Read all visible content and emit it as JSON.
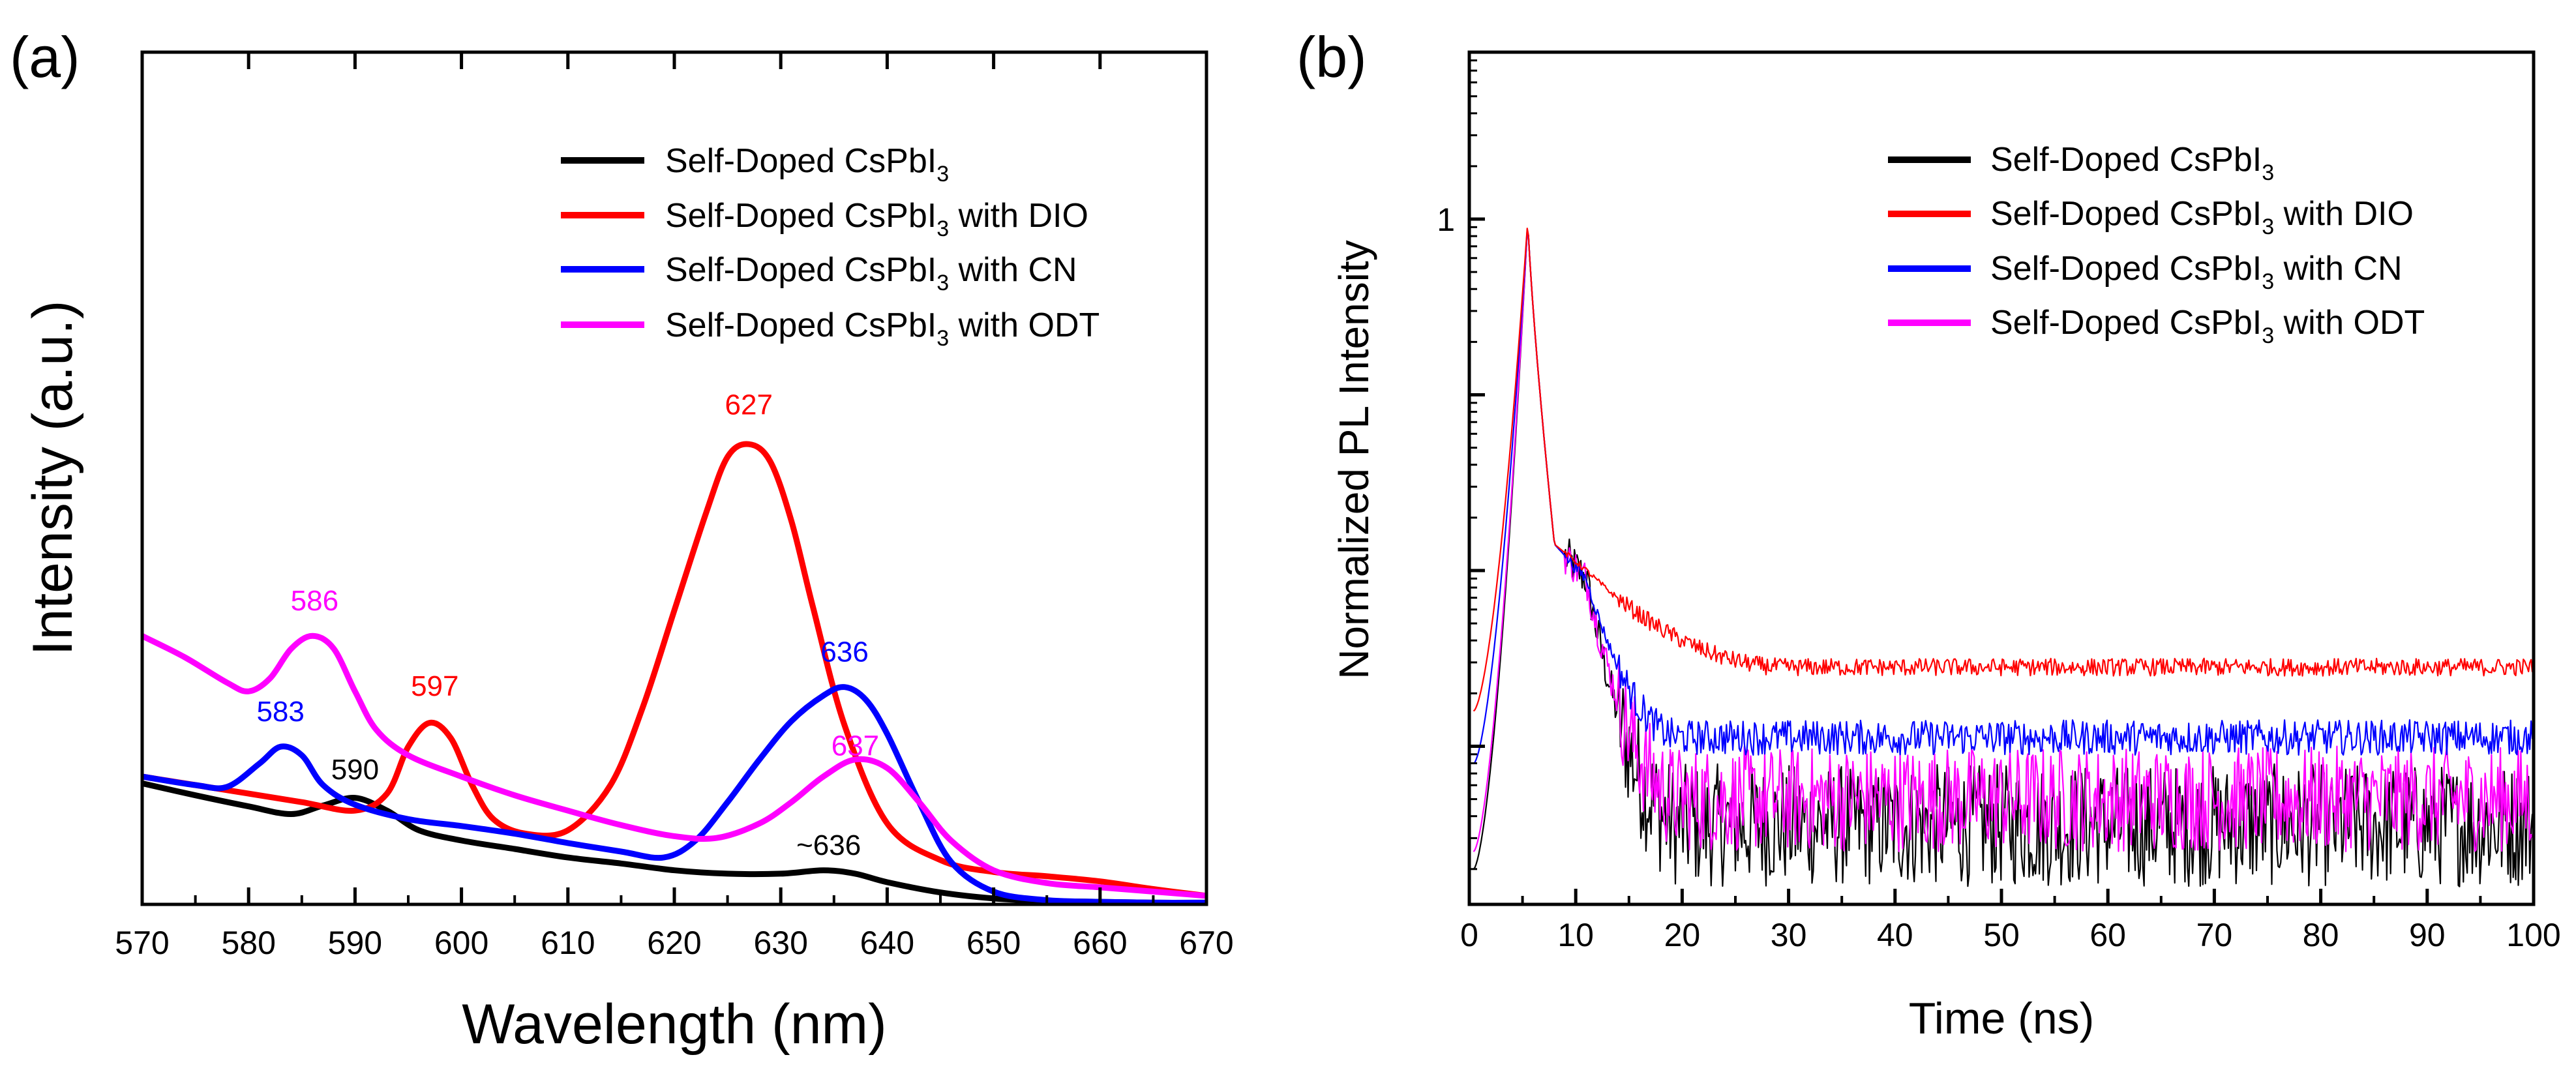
{
  "chart_data": [
    {
      "panel_label": "(a)",
      "type": "line",
      "title": "",
      "xlabel": "Wavelength (nm)",
      "ylabel": "Intensity (a.u.)",
      "xlim": [
        570,
        670
      ],
      "ylim": [
        0,
        1
      ],
      "x_ticks": [
        570,
        580,
        590,
        600,
        610,
        620,
        630,
        640,
        650,
        660,
        670
      ],
      "x_tick_labels": [
        "570",
        "580",
        "590",
        "600",
        "610",
        "620",
        "630",
        "640",
        "650",
        "660",
        "670"
      ],
      "legend": {
        "placement": "top-right"
      },
      "series": [
        {
          "name": "Self-Doped CsPbI3",
          "legend_main": "Self-Doped CsPbI",
          "legend_sub": "3",
          "legend_suffix": "",
          "color": "#000000",
          "x": [
            570,
            575,
            580,
            584,
            587,
            590,
            593,
            596,
            600,
            605,
            610,
            615,
            620,
            625,
            630,
            634,
            637,
            640,
            645,
            650,
            655,
            660,
            665,
            670
          ],
          "y": [
            0.142,
            0.128,
            0.115,
            0.106,
            0.116,
            0.125,
            0.11,
            0.087,
            0.075,
            0.065,
            0.055,
            0.048,
            0.04,
            0.036,
            0.036,
            0.04,
            0.036,
            0.026,
            0.014,
            0.007,
            0.004,
            0.003,
            0.002,
            0.002
          ]
        },
        {
          "name": "Self-Doped CsPbI3 with DIO",
          "legend_main": "Self-Doped CsPbI",
          "legend_sub": "3",
          "legend_suffix": " with DIO",
          "color": "#ff0000",
          "x": [
            570,
            575,
            580,
            585,
            590,
            593,
            595,
            597,
            599,
            601,
            603,
            606,
            610,
            614,
            617,
            620,
            623,
            625,
            627,
            629,
            631,
            633,
            636,
            640,
            645,
            650,
            655,
            660,
            665,
            670
          ],
          "y": [
            0.15,
            0.14,
            0.13,
            0.12,
            0.11,
            0.13,
            0.185,
            0.213,
            0.195,
            0.14,
            0.1,
            0.083,
            0.087,
            0.14,
            0.23,
            0.345,
            0.46,
            0.525,
            0.54,
            0.52,
            0.45,
            0.35,
            0.21,
            0.095,
            0.052,
            0.038,
            0.033,
            0.027,
            0.018,
            0.01
          ]
        },
        {
          "name": "Self-Doped CsPbI3 with CN",
          "legend_main": "Self-Doped CsPbI",
          "legend_sub": "3",
          "legend_suffix": " with CN",
          "color": "#0000ff",
          "x": [
            570,
            575,
            578,
            581,
            583,
            585,
            587,
            590,
            595,
            600,
            605,
            610,
            615,
            619,
            622,
            625,
            628,
            631,
            634,
            636,
            638,
            640,
            643,
            646,
            650,
            655,
            660,
            665,
            670
          ],
          "y": [
            0.15,
            0.14,
            0.138,
            0.165,
            0.185,
            0.175,
            0.14,
            0.117,
            0.1,
            0.092,
            0.083,
            0.072,
            0.062,
            0.055,
            0.075,
            0.12,
            0.17,
            0.215,
            0.245,
            0.255,
            0.24,
            0.2,
            0.12,
            0.05,
            0.015,
            0.005,
            0.003,
            0.002,
            0.002
          ]
        },
        {
          "name": "Self-Doped CsPbI3 with ODT",
          "legend_main": "Self-Doped CsPbI",
          "legend_sub": "3",
          "legend_suffix": " with ODT",
          "color": "#ff00ff",
          "x": [
            570,
            574,
            578,
            580,
            582,
            584,
            586,
            588,
            590,
            592,
            595,
            600,
            605,
            610,
            615,
            620,
            624,
            628,
            631,
            634,
            637,
            640,
            643,
            646,
            650,
            655,
            660,
            665,
            670
          ],
          "y": [
            0.315,
            0.29,
            0.26,
            0.25,
            0.265,
            0.3,
            0.315,
            0.3,
            0.25,
            0.205,
            0.175,
            0.15,
            0.128,
            0.11,
            0.093,
            0.08,
            0.078,
            0.095,
            0.12,
            0.15,
            0.17,
            0.16,
            0.12,
            0.075,
            0.04,
            0.025,
            0.02,
            0.015,
            0.01
          ]
        }
      ],
      "annotations": [
        {
          "text": "627",
          "x": 627,
          "y": 0.575,
          "color": "#ff0000"
        },
        {
          "text": "597",
          "x": 597.5,
          "y": 0.245,
          "color": "#ff0000"
        },
        {
          "text": "586",
          "x": 586.2,
          "y": 0.345,
          "color": "#ff00ff"
        },
        {
          "text": "583",
          "x": 583,
          "y": 0.215,
          "color": "#0000ff"
        },
        {
          "text": "590",
          "x": 590,
          "y": 0.147,
          "color": "#000000"
        },
        {
          "text": "636",
          "x": 636,
          "y": 0.285,
          "color": "#0000ff"
        },
        {
          "text": "637",
          "x": 637,
          "y": 0.175,
          "color": "#ff00ff"
        },
        {
          "text": "~636",
          "x": 634.5,
          "y": 0.058,
          "color": "#000000"
        }
      ]
    },
    {
      "panel_label": "(b)",
      "type": "line",
      "title": "",
      "xlabel": "Time (ns)",
      "ylabel": "Normalized PL Intensity",
      "xlim": [
        0,
        100
      ],
      "yscale": "log",
      "ylim_log10": [
        -3.9,
        0.95
      ],
      "y_ticks_log10": [
        -1,
        0,
        1
      ],
      "y_tick_label_major": "1",
      "x_ticks": [
        0,
        10,
        20,
        30,
        40,
        50,
        60,
        70,
        80,
        90,
        100
      ],
      "x_tick_labels": [
        "0",
        "10",
        "20",
        "30",
        "40",
        "50",
        "60",
        "70",
        "80",
        "90",
        "100"
      ],
      "legend": {
        "placement": "top-right"
      },
      "series": [
        {
          "name": "Self-Doped CsPbI3",
          "legend_main": "Self-Doped CsPbI",
          "legend_sub": "3",
          "legend_suffix": "",
          "color": "#000000",
          "decay": {
            "peak_time": 5.5,
            "rise_from_log10": -3.7,
            "shoulder_time": 11,
            "shoulder_log10": -2.05,
            "baseline_log10": -3.45,
            "decay_end_time": 20,
            "noise_log10": 0.35
          }
        },
        {
          "name": "Self-Doped CsPbI3 with DIO",
          "legend_main": "Self-Doped CsPbI",
          "legend_sub": "3",
          "legend_suffix": " with DIO",
          "color": "#ff0000",
          "decay": {
            "peak_time": 5.5,
            "rise_from_log10": -2.8,
            "shoulder_time": 11,
            "shoulder_log10": -2.0,
            "baseline_log10": -2.55,
            "decay_end_time": 30,
            "noise_log10": 0.05
          }
        },
        {
          "name": "Self-Doped CsPbI3 with CN",
          "legend_main": "Self-Doped CsPbI",
          "legend_sub": "3",
          "legend_suffix": " with CN",
          "color": "#0000ff",
          "decay": {
            "peak_time": 5.5,
            "rise_from_log10": -3.1,
            "shoulder_time": 11,
            "shoulder_log10": -2.05,
            "baseline_log10": -2.95,
            "decay_end_time": 20,
            "noise_log10": 0.1
          }
        },
        {
          "name": "Self-Doped CsPbI3 with ODT",
          "legend_main": "Self-Doped CsPbI",
          "legend_sub": "3",
          "legend_suffix": " with ODT",
          "color": "#ff00ff",
          "decay": {
            "peak_time": 5.5,
            "rise_from_log10": -3.6,
            "shoulder_time": 11,
            "shoulder_log10": -2.05,
            "baseline_log10": -3.3,
            "decay_end_time": 20,
            "noise_log10": 0.3
          }
        }
      ]
    }
  ]
}
